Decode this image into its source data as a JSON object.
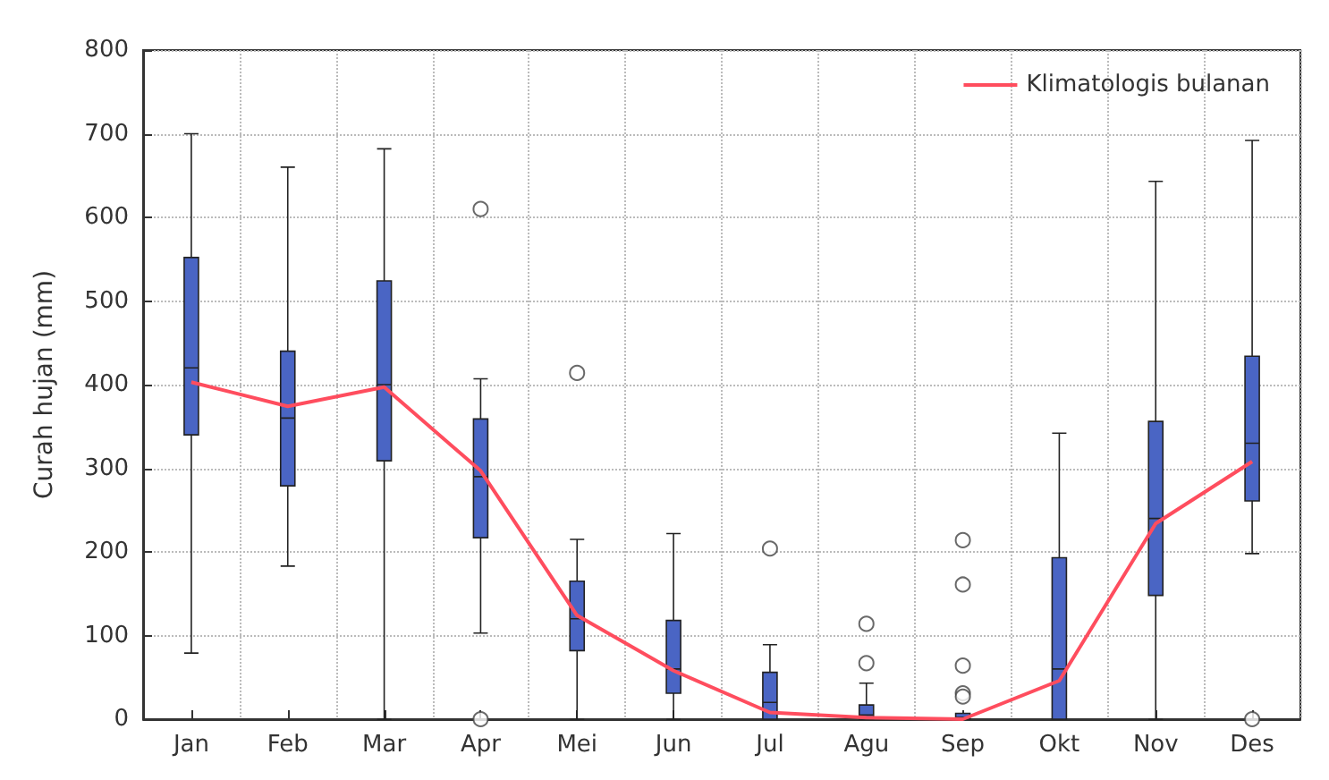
{
  "chart_data": {
    "type": "box",
    "ylabel": "Curah hujan (mm)",
    "categories": [
      "Jan",
      "Feb",
      "Mar",
      "Apr",
      "Mei",
      "Jun",
      "Jul",
      "Agu",
      "Sep",
      "Okt",
      "Nov",
      "Des"
    ],
    "ylim": [
      0,
      800
    ],
    "yticks": [
      0,
      100,
      200,
      300,
      400,
      500,
      600,
      700,
      800
    ],
    "grid": true,
    "legend": "top right",
    "series": [
      {
        "type": "box",
        "color": "#4a65c4",
        "boxes": [
          {
            "low": 79,
            "q1": 340,
            "median": 420,
            "q3": 552,
            "high": 700
          },
          {
            "low": 183,
            "q1": 279,
            "median": 360,
            "q3": 440,
            "high": 660
          },
          {
            "low": 0,
            "q1": 309,
            "median": 400,
            "q3": 524,
            "high": 682
          },
          {
            "low": 103,
            "q1": 217,
            "median": 290,
            "q3": 359,
            "high": 407,
            "outliers": [
              610,
              0
            ]
          },
          {
            "low": 0,
            "q1": 82,
            "median": 120,
            "q3": 165,
            "high": 215,
            "outliers": [
              414
            ]
          },
          {
            "low": 0,
            "q1": 31,
            "median": 60,
            "q3": 118,
            "high": 222
          },
          {
            "low": 0,
            "q1": 0,
            "median": 20,
            "q3": 56,
            "high": 89,
            "outliers": [
              204
            ]
          },
          {
            "low": 0,
            "q1": 0,
            "median": 5,
            "q3": 17,
            "high": 43,
            "outliers": [
              114,
              67
            ]
          },
          {
            "low": 0,
            "q1": 0,
            "median": 2,
            "q3": 7,
            "high": 7,
            "outliers": [
              214,
              161,
              64,
              31,
              27
            ]
          },
          {
            "low": 0,
            "q1": 0,
            "median": 60,
            "q3": 193,
            "high": 342
          },
          {
            "low": 0,
            "q1": 148,
            "median": 240,
            "q3": 356,
            "high": 643
          },
          {
            "low": 198,
            "q1": 261,
            "median": 330,
            "q3": 434,
            "high": 692,
            "outliers": [
              0
            ]
          }
        ]
      },
      {
        "type": "line",
        "name": "Klimatologis bulanan",
        "color": "#ff4d5e",
        "marker": "none",
        "values": [
          403,
          374,
          397,
          297,
          124,
          58,
          8,
          2,
          0,
          46,
          234,
          308
        ]
      }
    ]
  }
}
